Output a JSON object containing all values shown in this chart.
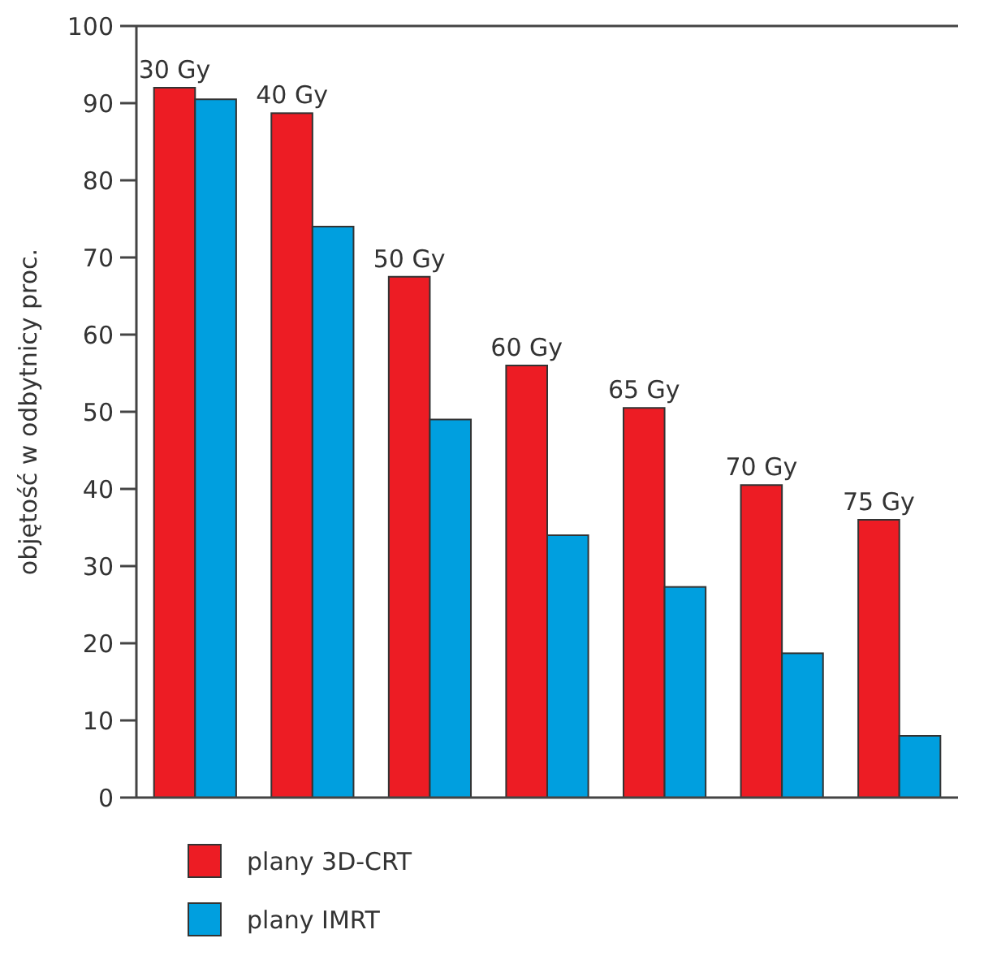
{
  "chart_data": {
    "type": "bar",
    "ylabel": "objętość w odbytnicy proc.",
    "categories": [
      "30 Gy",
      "40 Gy",
      "50 Gy",
      "60 Gy",
      "65 Gy",
      "70 Gy",
      "75 Gy"
    ],
    "series": [
      {
        "name": "plany 3D-CRT",
        "color": "#ed1c24",
        "values": [
          92,
          88.7,
          67.5,
          56,
          50.5,
          40.5,
          36
        ]
      },
      {
        "name": "plany IMRT",
        "color": "#009fdf",
        "values": [
          90.5,
          74,
          49,
          34,
          27.3,
          18.7,
          8
        ]
      }
    ],
    "ylim": [
      0,
      100
    ],
    "yticks": [
      0,
      10,
      20,
      30,
      40,
      50,
      60,
      70,
      80,
      90,
      100
    ],
    "grid": false,
    "legend": "bottom left"
  }
}
